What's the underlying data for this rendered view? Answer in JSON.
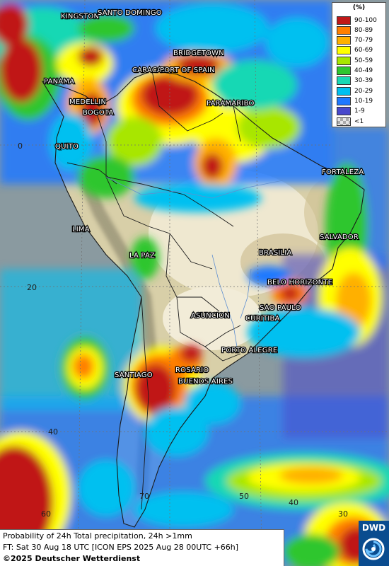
{
  "legend": {
    "title": "(%)",
    "items": [
      {
        "label": "90-100",
        "color": "#c01818"
      },
      {
        "label": "80-89",
        "color": "#ff7f00"
      },
      {
        "label": "70-79",
        "color": "#ffb000"
      },
      {
        "label": "60-69",
        "color": "#ffff00"
      },
      {
        "label": "50-59",
        "color": "#a8e600"
      },
      {
        "label": "40-49",
        "color": "#2fc62f"
      },
      {
        "label": "30-39",
        "color": "#18d8b4"
      },
      {
        "label": "20-29",
        "color": "#00c0f0"
      },
      {
        "label": "10-19",
        "color": "#1e78ff"
      },
      {
        "label": "1-9",
        "color": "#4848cc"
      },
      {
        "label": "<1",
        "color": "#cccccc"
      }
    ]
  },
  "cities": [
    "KINGSTON",
    "SANTO DOMINGO",
    "BRIDGETOWN",
    "CARACAS",
    "PORT OF SPAIN",
    "PANAMA",
    "MEDELLIN",
    "BOGOTA",
    "PARAMARIBO",
    "QUITO",
    "FORTALEZA",
    "LIMA",
    "LA PAZ",
    "BRASILIA",
    "SALVADOR",
    "BELO HORIZONTE",
    "SAO PAULO",
    "ASUNCION",
    "CURITIBA",
    "PORTO ALEGRE",
    "ROSARIO",
    "SANTIAGO",
    "BUENOS AIRES"
  ],
  "grid_labels": [
    "0",
    "20",
    "40",
    "60",
    "70",
    "50",
    "40",
    "30"
  ],
  "footer": {
    "line1": "Probability of 24h Total precipitation, 24h >1mm",
    "line2": "FT: Sat 30 Aug 18 UTC [ICON EPS 2025 Aug 28 00UTC +66h]",
    "line3": "©2025 Deutscher Wetterdienst"
  },
  "logo": {
    "text": "DWD"
  }
}
